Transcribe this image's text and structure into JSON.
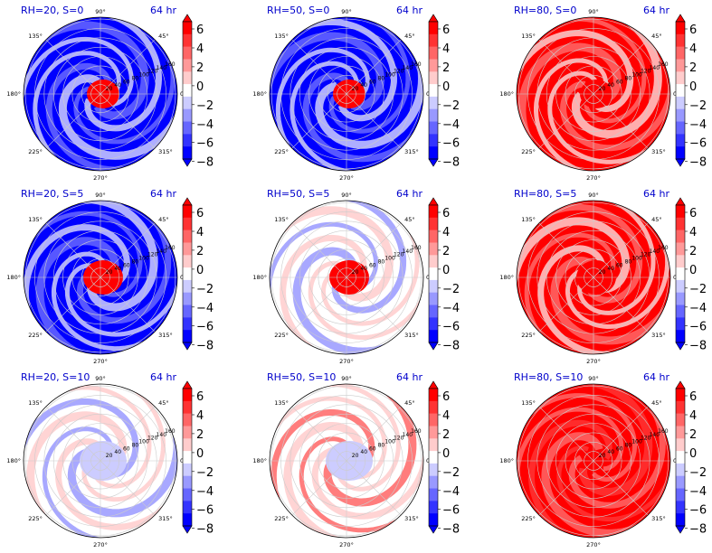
{
  "colorbar": {
    "ticks": [
      "6",
      "4",
      "2",
      "0",
      "−2",
      "−4",
      "−6",
      "−8"
    ],
    "colors": [
      "#ff0000",
      "#ff3333",
      "#ff6666",
      "#ff9999",
      "#ffcccc",
      "#ffffff",
      "#ccccff",
      "#9999ff",
      "#6666ff",
      "#3333ff",
      "#0000ff"
    ],
    "under_color": "#0000ff",
    "over_color": "#ff0000"
  },
  "polar_axis": {
    "angle_labels": [
      "90°",
      "45°",
      "0°",
      "315°",
      "270°",
      "225°",
      "180°",
      "135°"
    ],
    "radial_labels": [
      "20",
      "40",
      "60",
      "80",
      "100",
      "120",
      "140",
      "160"
    ]
  },
  "chart_data": [
    {
      "type": "heatmap",
      "title": "RH=20, S=0",
      "time_label": "64 hr",
      "rh": 20,
      "s": 0,
      "inner": 1,
      "outer": 1,
      "zmin": -8,
      "zmax": 6
    },
    {
      "type": "heatmap",
      "title": "RH=50, S=0",
      "time_label": "64 hr",
      "rh": 50,
      "s": 0,
      "inner": 1,
      "outer": 0.8,
      "zmin": -8,
      "zmax": 6
    },
    {
      "type": "heatmap",
      "title": "RH=80, S=0",
      "time_label": "64 hr",
      "rh": 80,
      "s": 0,
      "inner": 1,
      "outer": -0.6,
      "zmin": -8,
      "zmax": 6
    },
    {
      "type": "heatmap",
      "title": "RH=20, S=5",
      "time_label": "64 hr",
      "rh": 20,
      "s": 5,
      "inner": 1,
      "outer": 0.7,
      "zmin": -8,
      "zmax": 6
    },
    {
      "type": "heatmap",
      "title": "RH=50, S=5",
      "time_label": "64 hr",
      "rh": 50,
      "s": 5,
      "inner": 1,
      "outer": 0.4,
      "zmin": -8,
      "zmax": 6
    },
    {
      "type": "heatmap",
      "title": "RH=80, S=5",
      "time_label": "64 hr",
      "rh": 80,
      "s": 5,
      "inner": 1,
      "outer": -0.5,
      "zmin": -8,
      "zmax": 6
    },
    {
      "type": "heatmap",
      "title": "RH=20, S=10",
      "time_label": "64 hr",
      "rh": 20,
      "s": 10,
      "inner": -0.3,
      "outer": 0.3,
      "zmin": -8,
      "zmax": 6
    },
    {
      "type": "heatmap",
      "title": "RH=50, S=10",
      "time_label": "64 hr",
      "rh": 50,
      "s": 10,
      "inner": -0.5,
      "outer": -0.3,
      "zmin": -8,
      "zmax": 6
    },
    {
      "type": "heatmap",
      "title": "RH=80, S=10",
      "time_label": "64 hr",
      "rh": 80,
      "s": 10,
      "inner": -1,
      "outer": -1,
      "zmin": -8,
      "zmax": 6
    }
  ]
}
